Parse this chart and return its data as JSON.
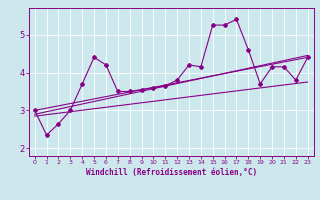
{
  "bg_color": "#cce8ec",
  "line_color": "#880088",
  "xlabel": "Windchill (Refroidissement éolien,°C)",
  "xlabel_color": "#880088",
  "tick_color": "#880088",
  "spine_color": "#880088",
  "xlim": [
    -0.5,
    23.5
  ],
  "ylim": [
    1.8,
    5.7
  ],
  "yticks": [
    2,
    3,
    4,
    5
  ],
  "xticks": [
    0,
    1,
    2,
    3,
    4,
    5,
    6,
    7,
    8,
    9,
    10,
    11,
    12,
    13,
    14,
    15,
    16,
    17,
    18,
    19,
    20,
    21,
    22,
    23
  ],
  "series1_x": [
    0,
    1,
    2,
    3,
    4,
    5,
    6,
    7,
    8,
    9,
    10,
    11,
    12,
    13,
    14,
    15,
    16,
    17,
    18,
    19,
    20,
    21,
    22,
    23
  ],
  "series1_y": [
    3.0,
    2.35,
    2.65,
    3.0,
    3.7,
    4.4,
    4.2,
    3.5,
    3.5,
    3.55,
    3.6,
    3.65,
    3.8,
    4.2,
    4.15,
    5.25,
    5.25,
    5.4,
    4.6,
    3.7,
    4.15,
    4.15,
    3.8,
    4.4
  ],
  "trend1_x": [
    0,
    23
  ],
  "trend1_y": [
    2.9,
    4.45
  ],
  "trend2_x": [
    0,
    23
  ],
  "trend2_y": [
    3.0,
    4.4
  ],
  "trend3_x": [
    0,
    23
  ],
  "trend3_y": [
    2.85,
    3.75
  ],
  "grid_color": "#aacccc",
  "grid_lw": 0.5
}
